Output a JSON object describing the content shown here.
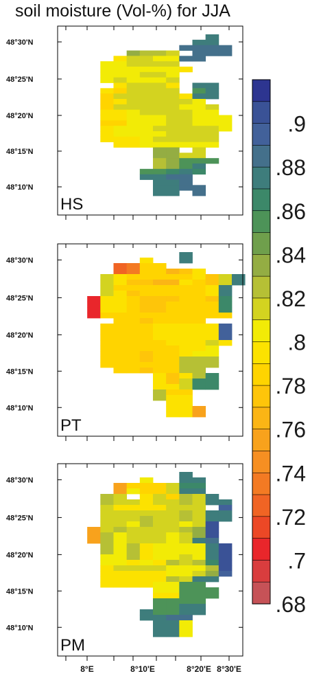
{
  "title": "soil moisture (Vol-%) for JJA",
  "colors": {
    "axis": "#000000",
    "background": "#ffffff"
  },
  "chart_data": {
    "type": "heatmap",
    "title": "soil moisture (Vol-%) for JJA",
    "panel_order": [
      "HS",
      "PT",
      "PM"
    ],
    "latitude_ticks": [
      "48°30'N",
      "48°25'N",
      "48°20'N",
      "48°15'N",
      "48°10'N"
    ],
    "longitude_ticks": [
      "8°E",
      "8°10'E",
      "8°20'E",
      "8°30'E"
    ],
    "colorbar": {
      "tick_labels": [
        ".9",
        ".88",
        ".86",
        ".84",
        ".82",
        ".8",
        ".78",
        ".76",
        ".74",
        ".72",
        ".7",
        ".68"
      ],
      "bins_top_to_bottom": [
        {
          "color": "#2d3590",
          "value": 0.915
        },
        {
          "color": "#3a5296",
          "value": 0.905
        },
        {
          "color": "#42619a",
          "value": 0.895
        },
        {
          "color": "#44708b",
          "value": 0.885
        },
        {
          "color": "#3e7d7c",
          "value": 0.875
        },
        {
          "color": "#3c8869",
          "value": 0.865
        },
        {
          "color": "#4d9358",
          "value": 0.855
        },
        {
          "color": "#6f9f4c",
          "value": 0.845
        },
        {
          "color": "#94ad43",
          "value": 0.835
        },
        {
          "color": "#b6c035",
          "value": 0.825
        },
        {
          "color": "#d3d320",
          "value": 0.815
        },
        {
          "color": "#f2eb06",
          "value": 0.805
        },
        {
          "color": "#fce200",
          "value": 0.795
        },
        {
          "color": "#ffd400",
          "value": 0.785
        },
        {
          "color": "#fec50a",
          "value": 0.775
        },
        {
          "color": "#fbb515",
          "value": 0.765
        },
        {
          "color": "#f8a21c",
          "value": 0.755
        },
        {
          "color": "#f68f22",
          "value": 0.745
        },
        {
          "color": "#f37a23",
          "value": 0.735
        },
        {
          "color": "#f06424",
          "value": 0.725
        },
        {
          "color": "#ec4826",
          "value": 0.715
        },
        {
          "color": "#e9262b",
          "value": 0.705
        },
        {
          "color": "#d93d3e",
          "value": 0.695
        },
        {
          "color": "#c65257",
          "value": 0.685
        }
      ]
    },
    "panels": [
      {
        "label": "HS",
        "grid": [
          "..........I.",
          ".........JI.",
          "........HGHH",
          "....kllm.GHH",
          "...qmmooHG..",
          "..oommmm....",
          "..oooooop...",
          "..ooommo....",
          "..omooom....",
          "...qnmmq.IJ.",
          "..prmmmm.NJ.",
          "..rmnnmnpJJ.",
          "..rqnnmnmo..",
          "..rnmmmmoon.",
          "..qqonnnnoo.",
          "..qqooommooo",
          "..rrooommooo",
          "..pooonnmmmo",
          "..poooommmm.",
          "..pqqonnnmm.",
          "...ppoooooo.",
          "......kk.m..",
          "......kkmm..",
          "......lkNNN.",
          "......lkNJ..",
          ".....MMLJK..",
          ".....JJHH...",
          "......JJH...",
          "......JJHH..",
          "......JJ.H.."
        ]
      },
      {
        "label": "PT",
        "grid": [
          "........I...",
          ".....q..I...",
          "...xwrr.....",
          "...xwrrtsp..",
          "..nprrrrrpsmI",
          "..npssttqrsmJ",
          "..nrrrrrrrpJ.",
          "..mqsrrrrrqJ.",
          ".zpqrsssrrsK.",
          ".zpqrssrrrrK.",
          ".zpqrssrrrrK.",
          ".zrrrrrrrrrr.",
          "...rrsrrrr...",
          "..rrrrqpqqqE",
          "..rrrrqpqqqE",
          "..rrrrqpqqqE",
          "..rrrrrpqqmq",
          "..rrrrrrqqo.",
          "..rrrsrrqoo.",
          "..rrrsrrlll.",
          "..rrrrrrlll.",
          "...rrsrrll..",
          "......qsqlL.",
          "......qsmLL.",
          "......pqmLL.",
          "......lrr...",
          "......lqp...",
          ".......qq...",
          ".......ppu..",
          ".......ppu.."
        ]
      },
      {
        "label": "PM",
        "grid": [
          "........I...",
          ".....o..JI..",
          "...urrrmKK..",
          "...uorrmJI..",
          "..ln.pnrlmI.",
          "..lnnpnnlnII",
          "..nqqqqnnm.F",
          "..mmmmmmlnII",
          "..nnmlmmlnII",
          "..mmolnmonD.",
          ".unlmmmnlkD.",
          ".ulomnnonkD.",
          ".ulomnnonJG.",
          "..lolqooooJD",
          "..lolqooooJD",
          "..oolqoonoJD",
          "..ooqoqlmlLC",
          "..qnnnnooolC",
          "..qqqqqoomkF",
          "..qqqqqlmJJ.",
          "..qqqqooNN..",
          "......ooNNN.",
          "......qqNNN.",
          "......MMMM..",
          "......MMIJ..",
          ".....IMNJJ..",
          ".....JJHH...",
          "......JJo...",
          "......JJo...",
          "......JJo..."
        ]
      }
    ],
    "grid_legend": {
      "A": 0.915,
      "B": 0.91,
      "C": 0.905,
      "D": 0.9,
      "E": 0.895,
      "F": 0.89,
      "G": 0.885,
      "H": 0.88,
      "I": 0.875,
      "J": 0.87,
      "K": 0.865,
      "L": 0.86,
      "M": 0.855,
      "N": 0.85,
      "k": 0.835,
      "l": 0.825,
      "m": 0.815,
      "n": 0.81,
      "o": 0.805,
      "p": 0.795,
      "q": 0.79,
      "r": 0.785,
      "s": 0.775,
      "t": 0.765,
      "u": 0.755,
      "v": 0.745,
      "w": 0.735,
      "x": 0.725,
      "y": 0.715,
      "z": 0.705,
      ".": null
    },
    "grid_lon_range": [
      "7°57'E",
      "8°27'E"
    ],
    "grid_lat_range": [
      "48°32'N",
      "48°8'N"
    ]
  }
}
